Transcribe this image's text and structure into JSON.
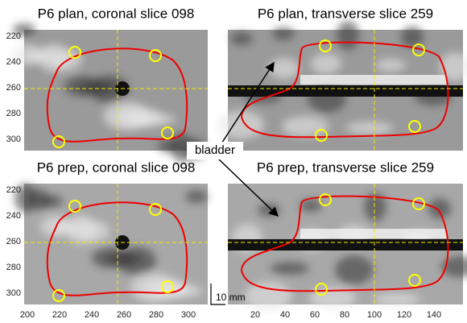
{
  "panels": [
    {
      "title": "P6 plan, coronal slice 098",
      "yticks": [
        220,
        240,
        260,
        280,
        300
      ]
    },
    {
      "title": "P6 plan, transverse slice 259"
    },
    {
      "title": "P6 prep, coronal slice 098",
      "yticks": [
        220,
        240,
        260,
        280,
        300
      ],
      "xticks": [
        200,
        220,
        240,
        260,
        280,
        300
      ]
    },
    {
      "title": "P6 prep, transverse slice 259",
      "xticks": [
        20,
        40,
        60,
        80,
        100,
        120,
        140
      ]
    }
  ],
  "annotations": {
    "bladder": "bladder",
    "scale": "10 mm"
  }
}
